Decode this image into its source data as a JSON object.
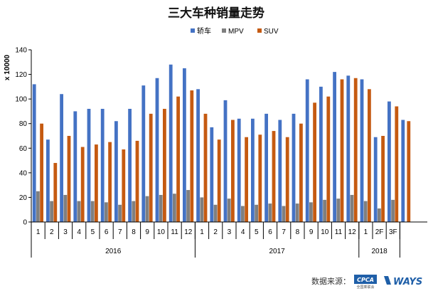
{
  "colors": {
    "sedan": "#4472C4",
    "mpv": "#7F7F7F",
    "suv": "#C55A11"
  },
  "chart_data": {
    "type": "bar",
    "title": "三大车种销量走势",
    "ylabel": "x 10000",
    "xlabel": "",
    "ylim": [
      0,
      140
    ],
    "yticks": [
      0,
      20,
      40,
      60,
      80,
      100,
      120,
      140
    ],
    "legend": "top",
    "grid": false,
    "categories": [
      "1",
      "2",
      "3",
      "4",
      "5",
      "6",
      "7",
      "8",
      "9",
      "10",
      "11",
      "12",
      "1",
      "2",
      "3",
      "4",
      "5",
      "6",
      "7",
      "8",
      "9",
      "10",
      "11",
      "12",
      "1",
      "2F",
      "3F"
    ],
    "groups": [
      {
        "label": "2016",
        "count": 12
      },
      {
        "label": "2017",
        "count": 12
      },
      {
        "label": "2018",
        "count": 3
      }
    ],
    "series": [
      {
        "name": "轿车",
        "values": [
          112,
          67,
          104,
          90,
          92,
          92,
          82,
          92,
          111,
          117,
          128,
          125,
          108,
          77,
          99,
          84,
          84,
          88,
          83,
          88,
          116,
          110,
          122,
          119,
          116,
          69,
          98
        ]
      },
      {
        "name": "MPV",
        "values": [
          25,
          17,
          22,
          17,
          17,
          16,
          14,
          17,
          21,
          22,
          23,
          26,
          20,
          14,
          19,
          13,
          14,
          15,
          13,
          15,
          16,
          18,
          19,
          22,
          17,
          11,
          18
        ]
      },
      {
        "name": "SUV",
        "values": [
          80,
          48,
          70,
          61,
          63,
          65,
          59,
          66,
          88,
          92,
          102,
          107,
          88,
          67,
          83,
          69,
          71,
          74,
          69,
          80,
          97,
          102,
          116,
          117,
          108,
          70,
          94
        ]
      }
    ],
    "extra_tail": {
      "sedan": 83,
      "suv": 82
    }
  },
  "footer": {
    "source_label": "数据来源：",
    "logo1": "CPCA",
    "logo1_sub": "全国乘联会",
    "logo2": "WAYS"
  }
}
